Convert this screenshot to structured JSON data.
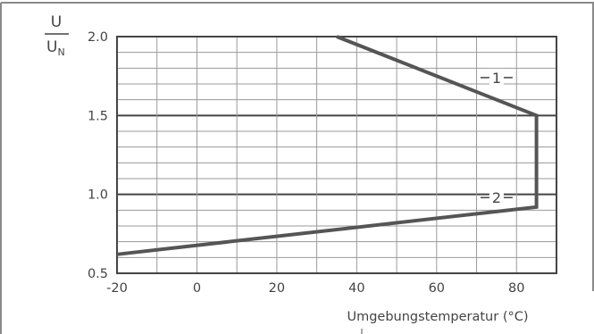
{
  "chart_data": {
    "type": "line",
    "ylabel_numerator": "U",
    "ylabel_denominator": "U",
    "ylabel_denominator_sub": "N",
    "xlabel": "Umgebungstemperatur (°C)",
    "xlim": [
      -20,
      90
    ],
    "ylim": [
      0.5,
      2.0
    ],
    "x_ticks": [
      -20,
      0,
      20,
      40,
      60,
      80
    ],
    "x_tick_labels": [
      "-20",
      "0",
      "20",
      "40",
      "60",
      "80"
    ],
    "y_ticks": [
      0.5,
      1.0,
      1.5,
      2.0
    ],
    "y_tick_labels": [
      "0.5",
      "1.0",
      "1.5",
      "2.0"
    ],
    "minor_x_step": 10,
    "minor_y_step": 0.1,
    "grid": true,
    "boundary": {
      "x": [
        35,
        85,
        85,
        -20
      ],
      "y": [
        2.0,
        1.5,
        0.92,
        0.62
      ]
    },
    "curve_labels": [
      {
        "label": "1",
        "x": 75,
        "y": 1.74
      },
      {
        "label": "2",
        "x": 75,
        "y": 0.98
      }
    ]
  }
}
